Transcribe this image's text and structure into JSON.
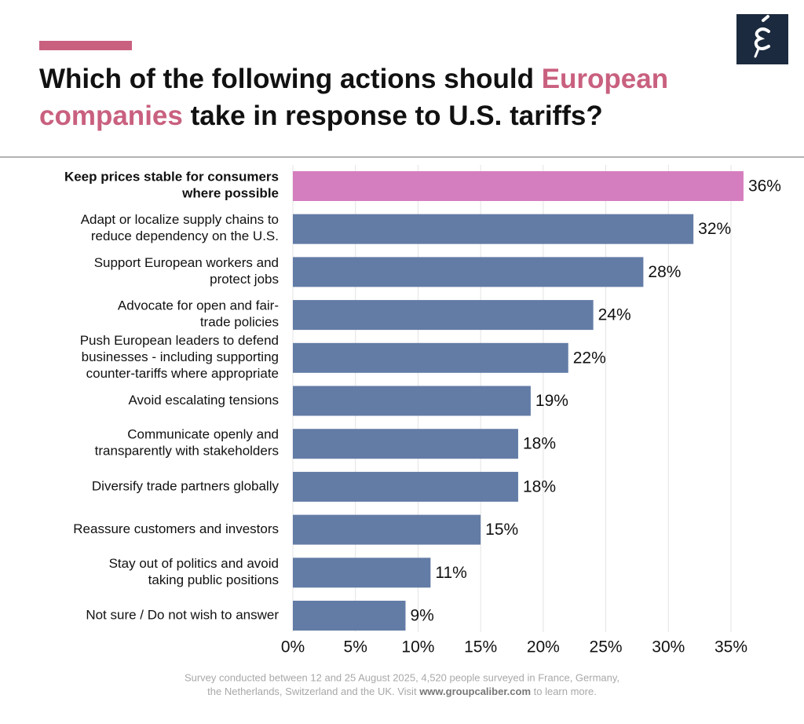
{
  "chart_data": {
    "type": "barh",
    "title": [
      {
        "text": "Which of the following actions should ",
        "color": "#111111"
      },
      {
        "text": "European",
        "color": "#c9607f"
      },
      {
        "text": "companies",
        "color": "#c9607f"
      },
      {
        "text": " take in response to U.S. tariffs?",
        "color": "#111111"
      }
    ],
    "categories": [
      "Keep prices stable for consumers\nwhere possible",
      "Adapt or localize supply chains to\nreduce dependency on the U.S.",
      "Support European workers and\nprotect jobs",
      "Advocate for open and fair-\ntrade policies",
      "Push European leaders to defend\nbusinesses - including supporting\ncounter-tariffs where appropriate",
      "Avoid escalating tensions",
      "Communicate openly and\ntransparently with stakeholders",
      "Diversify trade partners globally",
      "Reassure customers and investors",
      "Stay out of politics and avoid\ntaking public positions",
      "Not sure / Do not wish to answer"
    ],
    "values": [
      36,
      32,
      28,
      24,
      22,
      19,
      18,
      18,
      15,
      11,
      9
    ],
    "value_labels": [
      "36%",
      "32%",
      "28%",
      "24%",
      "22%",
      "19%",
      "18%",
      "18%",
      "15%",
      "11%",
      "9%"
    ],
    "color": "#637ca6",
    "highlight_color": "#d57ebf",
    "highlight_index": 0,
    "xlim": [
      0,
      35
    ],
    "xticks": [
      {
        "value": 0,
        "label": "0%"
      },
      {
        "value": 5,
        "label": "5%"
      },
      {
        "value": 10,
        "label": "10%"
      },
      {
        "value": 15,
        "label": "15%"
      },
      {
        "value": 20,
        "label": "20%"
      },
      {
        "value": 25,
        "label": "25%"
      },
      {
        "value": 30,
        "label": "30%"
      },
      {
        "value": 35,
        "label": "35%"
      }
    ],
    "grid": true,
    "footnote": [
      {
        "text": "Survey conducted between 12 and 25 August 2025, 4,520 people surveyed in France, Germany,",
        "bold": false
      },
      {
        "text": "the Netherlands, Switzerland and the UK. Visit ",
        "bold": false
      },
      {
        "text": "www.groupcaliber.com",
        "bold": true
      },
      {
        "text": " to learn more.",
        "bold": false
      }
    ]
  }
}
